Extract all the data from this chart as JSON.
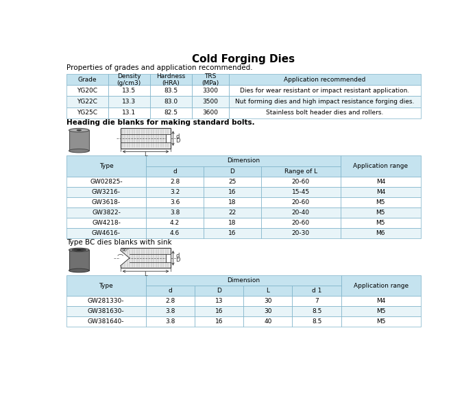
{
  "title": "Cold Forging Dies",
  "subtitle1": "Properties of grades and application recommended.",
  "subtitle2": "Heading die blanks for making standard bolts.",
  "subtitle3": "Type BC dies blanks with sink",
  "table1_data": [
    [
      "YG20C",
      "13.5",
      "83.5",
      "3300",
      "Dies for wear resistant or impact resistant application."
    ],
    [
      "YG22C",
      "13.3",
      "83.0",
      "3500",
      "Nut forming dies and high impact resistance forging dies."
    ],
    [
      "YG25C",
      "13.1",
      "82.5",
      "3600",
      "Stainless bolt header dies and rollers."
    ]
  ],
  "table2_data": [
    [
      "GW02825-",
      "2.8",
      "25",
      "20-60",
      "M4"
    ],
    [
      "GW3216-",
      "3.2",
      "16",
      "15-45",
      "M4"
    ],
    [
      "GW3618-",
      "3.6",
      "18",
      "20-60",
      "M5"
    ],
    [
      "GW3822-",
      "3.8",
      "22",
      "20-40",
      "M5"
    ],
    [
      "GW4218-",
      "4.2",
      "18",
      "20-60",
      "M5"
    ],
    [
      "GW4616-",
      "4.6",
      "16",
      "20-30",
      "M6"
    ]
  ],
  "table3_data": [
    [
      "GW281330-",
      "2.8",
      "13",
      "30",
      "7",
      "M4"
    ],
    [
      "GW381630-",
      "3.8",
      "16",
      "30",
      "8.5",
      "M5"
    ],
    [
      "GW381640-",
      "3.8",
      "16",
      "40",
      "8.5",
      "M5"
    ]
  ],
  "header_bg": "#c5e3ef",
  "row_bg_alt": "#e8f4f8",
  "row_bg_white": "#ffffff",
  "border_color": "#7ab0c8",
  "text_color": "#000000",
  "bg_color": "#ffffff",
  "fig_width": 6.93,
  "fig_height": 6.06,
  "dpi": 100
}
